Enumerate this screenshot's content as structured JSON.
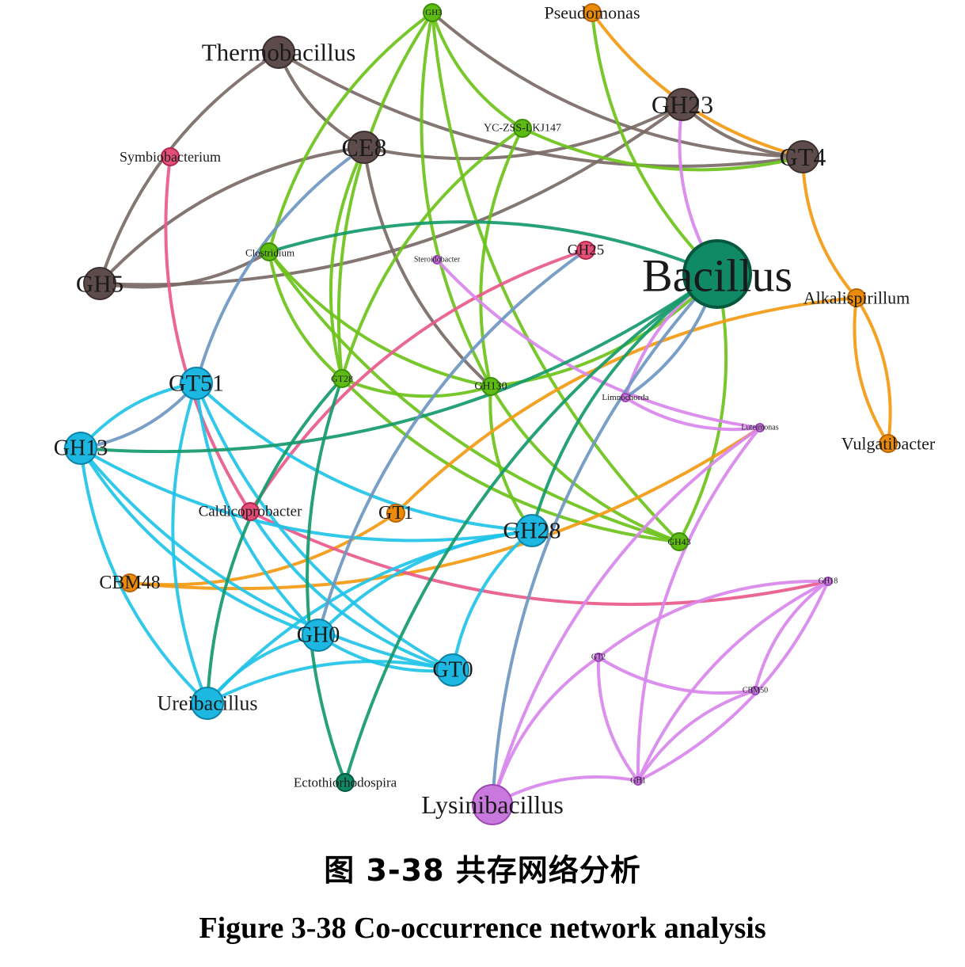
{
  "figure": {
    "caption_cn": "图 3-38  共存网络分析",
    "caption_en": "Figure 3-38 Co-occurrence network analysis"
  },
  "legend_colors": {
    "brown": "#7a6a66",
    "green": "#6cc21a",
    "orange": "#f39a12",
    "pink": "#e85a8a",
    "violet": "#d987ec",
    "cyan": "#20c3e8",
    "teal": "#159a6a",
    "steel": "#6f97c2"
  },
  "network": {
    "nodes": [
      {
        "id": "Thermobacillus",
        "label": "Thermobacillus",
        "group": "brown",
        "size": "m"
      },
      {
        "id": "CE8",
        "label": "CE8",
        "group": "brown",
        "size": "m"
      },
      {
        "id": "GH5",
        "label": "GH5",
        "group": "brown",
        "size": "m"
      },
      {
        "id": "GH23",
        "label": "GH23",
        "group": "brown",
        "size": "m"
      },
      {
        "id": "GT4",
        "label": "GT4",
        "group": "brown",
        "size": "m"
      },
      {
        "id": "GH3",
        "label": "GH3",
        "group": "green",
        "size": "s"
      },
      {
        "id": "YC-ZSS-LKJ147",
        "label": "YC-ZSS-LKJ147",
        "group": "green",
        "size": "s"
      },
      {
        "id": "Clostridium",
        "label": "Clostridium",
        "group": "green",
        "size": "s"
      },
      {
        "id": "GT28",
        "label": "GT28",
        "group": "green",
        "size": "s"
      },
      {
        "id": "GH130",
        "label": "GH130",
        "group": "green",
        "size": "s"
      },
      {
        "id": "GH43",
        "label": "GH43",
        "group": "green",
        "size": "s"
      },
      {
        "id": "Pseudomonas",
        "label": "Pseudomonas",
        "group": "orange",
        "size": "s"
      },
      {
        "id": "Alkalispirillum",
        "label": "Alkalispirillum",
        "group": "orange",
        "size": "s"
      },
      {
        "id": "Vulgatibacter",
        "label": "Vulgatibacter",
        "group": "orange",
        "size": "s"
      },
      {
        "id": "GT1",
        "label": "GT1",
        "group": "orange",
        "size": "s"
      },
      {
        "id": "CBM48",
        "label": "CBM48",
        "group": "orange",
        "size": "s"
      },
      {
        "id": "Symbiobacterium",
        "label": "Symbiobacterium",
        "group": "pink",
        "size": "s"
      },
      {
        "id": "GH25",
        "label": "GH25",
        "group": "pink",
        "size": "s"
      },
      {
        "id": "Caldicoprobacter",
        "label": "Caldicoprobacter",
        "group": "pink",
        "size": "s"
      },
      {
        "id": "Steroidobacter",
        "label": "Steroidobacter",
        "group": "violet",
        "size": "xs"
      },
      {
        "id": "Limnochorda",
        "label": "Limnochorda",
        "group": "violet",
        "size": "xs"
      },
      {
        "id": "Luteimonas",
        "label": "Luteimonas",
        "group": "violet",
        "size": "xs"
      },
      {
        "id": "GH18",
        "label": "GH18",
        "group": "violet",
        "size": "xs"
      },
      {
        "id": "GT2",
        "label": "GT2",
        "group": "violet",
        "size": "xs"
      },
      {
        "id": "CBM50",
        "label": "CBM50",
        "group": "violet",
        "size": "xs"
      },
      {
        "id": "GH1",
        "label": "GH1",
        "group": "violet",
        "size": "xs"
      },
      {
        "id": "Lysinibacillus",
        "label": "Lysinibacillus",
        "group": "violet",
        "size": "l"
      },
      {
        "id": "GT51",
        "label": "GT51",
        "group": "cyan",
        "size": "m"
      },
      {
        "id": "GH13",
        "label": "GH13",
        "group": "cyan",
        "size": "m"
      },
      {
        "id": "GH28",
        "label": "GH28",
        "group": "cyan",
        "size": "m"
      },
      {
        "id": "GH0",
        "label": "GH0",
        "group": "cyan",
        "size": "m"
      },
      {
        "id": "GT0",
        "label": "GT0",
        "group": "cyan",
        "size": "m"
      },
      {
        "id": "Ureibacillus",
        "label": "Ureibacillus",
        "group": "cyan",
        "size": "m"
      },
      {
        "id": "Bacillus",
        "label": "Bacillus",
        "group": "teal",
        "size": "xl"
      },
      {
        "id": "Ectothiorhodospira",
        "label": "Ectothiorhodospira",
        "group": "teal",
        "size": "s"
      }
    ],
    "edges": [
      {
        "source": "Thermobacillus",
        "target": "CE8",
        "color": "brown"
      },
      {
        "source": "Thermobacillus",
        "target": "GH5",
        "color": "brown"
      },
      {
        "source": "CE8",
        "target": "GH5",
        "color": "brown"
      },
      {
        "source": "GH5",
        "target": "GH23",
        "color": "brown"
      },
      {
        "source": "GH5",
        "target": "Clostridium",
        "color": "brown"
      },
      {
        "source": "CE8",
        "target": "GH23",
        "color": "brown"
      },
      {
        "source": "GH3",
        "target": "GT4",
        "color": "brown"
      },
      {
        "source": "Thermobacillus",
        "target": "GT4",
        "color": "brown"
      },
      {
        "source": "CE8",
        "target": "GH130",
        "color": "brown"
      },
      {
        "source": "GH23",
        "target": "GT4",
        "color": "brown"
      },
      {
        "source": "GH3",
        "target": "YC-ZSS-LKJ147",
        "color": "green"
      },
      {
        "source": "GH3",
        "target": "Clostridium",
        "color": "green"
      },
      {
        "source": "GH3",
        "target": "GT28",
        "color": "green"
      },
      {
        "source": "GH3",
        "target": "GH130",
        "color": "green"
      },
      {
        "source": "GH3",
        "target": "GH43",
        "color": "green"
      },
      {
        "source": "YC-ZSS-LKJ147",
        "target": "GT28",
        "color": "green"
      },
      {
        "source": "YC-ZSS-LKJ147",
        "target": "GH130",
        "color": "green"
      },
      {
        "source": "YC-ZSS-LKJ147",
        "target": "GT4",
        "color": "green"
      },
      {
        "source": "Clostridium",
        "target": "GT28",
        "color": "green"
      },
      {
        "source": "Clostridium",
        "target": "GH130",
        "color": "green"
      },
      {
        "source": "Clostridium",
        "target": "GH43",
        "color": "green"
      },
      {
        "source": "GT28",
        "target": "GH130",
        "color": "green"
      },
      {
        "source": "GT28",
        "target": "GH43",
        "color": "green"
      },
      {
        "source": "GH130",
        "target": "GH43",
        "color": "green"
      },
      {
        "source": "GH130",
        "target": "GH28",
        "color": "green"
      },
      {
        "source": "CE8",
        "target": "GT28",
        "color": "green"
      },
      {
        "source": "GH130",
        "target": "Bacillus",
        "color": "green"
      },
      {
        "source": "GH43",
        "target": "Bacillus",
        "color": "green"
      },
      {
        "source": "Pseudomonas",
        "target": "Bacillus",
        "color": "green"
      },
      {
        "source": "Pseudomonas",
        "target": "GT4",
        "color": "orange"
      },
      {
        "source": "GT4",
        "target": "Alkalispirillum",
        "color": "orange"
      },
      {
        "source": "Alkalispirillum",
        "target": "Vulgatibacter",
        "color": "orange"
      },
      {
        "source": "Alkalispirillum",
        "target": "Vulgatibacter",
        "color": "orange"
      },
      {
        "source": "Alkalispirillum",
        "target": "GT1",
        "color": "orange"
      },
      {
        "source": "CBM48",
        "target": "GT1",
        "color": "orange"
      },
      {
        "source": "CBM48",
        "target": "Luteimonas",
        "color": "orange"
      },
      {
        "source": "Symbiobacterium",
        "target": "Caldicoprobacter",
        "color": "pink"
      },
      {
        "source": "GH25",
        "target": "Caldicoprobacter",
        "color": "pink"
      },
      {
        "source": "Caldicoprobacter",
        "target": "GH18",
        "color": "pink"
      },
      {
        "source": "Steroidobacter",
        "target": "Luteimonas",
        "color": "violet"
      },
      {
        "source": "GH23",
        "target": "Bacillus",
        "color": "violet"
      },
      {
        "source": "Bacillus",
        "target": "Limnochorda",
        "color": "violet"
      },
      {
        "source": "Limnochorda",
        "target": "Luteimonas",
        "color": "violet"
      },
      {
        "source": "Luteimonas",
        "target": "Lysinibacillus",
        "color": "violet"
      },
      {
        "source": "Luteimonas",
        "target": "GH1",
        "color": "violet"
      },
      {
        "source": "GH18",
        "target": "GT2",
        "color": "violet"
      },
      {
        "source": "GH18",
        "target": "CBM50",
        "color": "violet"
      },
      {
        "source": "GH18",
        "target": "GH1",
        "color": "violet"
      },
      {
        "source": "GT2",
        "target": "CBM50",
        "color": "violet"
      },
      {
        "source": "GT2",
        "target": "GH1",
        "color": "violet"
      },
      {
        "source": "CBM50",
        "target": "GH1",
        "color": "violet"
      },
      {
        "source": "GT2",
        "target": "Lysinibacillus",
        "color": "violet"
      },
      {
        "source": "GH1",
        "target": "Lysinibacillus",
        "color": "violet"
      },
      {
        "source": "GH18",
        "target": "GH1",
        "color": "violet"
      },
      {
        "source": "GT51",
        "target": "GH13",
        "color": "cyan"
      },
      {
        "source": "GT51",
        "target": "GH28",
        "color": "cyan"
      },
      {
        "source": "GT51",
        "target": "GH0",
        "color": "cyan"
      },
      {
        "source": "GT51",
        "target": "GT0",
        "color": "cyan"
      },
      {
        "source": "GT51",
        "target": "Ureibacillus",
        "color": "cyan"
      },
      {
        "source": "GH13",
        "target": "GH28",
        "color": "cyan"
      },
      {
        "source": "GH13",
        "target": "GH0",
        "color": "cyan"
      },
      {
        "source": "GH13",
        "target": "GT0",
        "color": "cyan"
      },
      {
        "source": "GH13",
        "target": "Ureibacillus",
        "color": "cyan"
      },
      {
        "source": "GH28",
        "target": "GH0",
        "color": "cyan"
      },
      {
        "source": "GH28",
        "target": "GT0",
        "color": "cyan"
      },
      {
        "source": "GH28",
        "target": "Ureibacillus",
        "color": "cyan"
      },
      {
        "source": "GH0",
        "target": "GT0",
        "color": "cyan"
      },
      {
        "source": "GH0",
        "target": "Ureibacillus",
        "color": "cyan"
      },
      {
        "source": "GT0",
        "target": "Ureibacillus",
        "color": "cyan"
      },
      {
        "source": "Caldicoprobacter",
        "target": "GT0",
        "color": "cyan"
      },
      {
        "source": "GH13",
        "target": "Bacillus",
        "color": "teal"
      },
      {
        "source": "GT28",
        "target": "Ureibacillus",
        "color": "teal"
      },
      {
        "source": "Bacillus",
        "target": "GH28",
        "color": "teal"
      },
      {
        "source": "Bacillus",
        "target": "Ectothiorhodospira",
        "color": "teal"
      },
      {
        "source": "GT28",
        "target": "Ectothiorhodospira",
        "color": "teal"
      },
      {
        "source": "Bacillus",
        "target": "Clostridium",
        "color": "teal"
      },
      {
        "source": "CE8",
        "target": "GT51",
        "color": "steel"
      },
      {
        "source": "GT51",
        "target": "GH13",
        "color": "steel"
      },
      {
        "source": "GH25",
        "target": "GH0",
        "color": "steel"
      },
      {
        "source": "Bacillus",
        "target": "Lysinibacillus",
        "color": "steel"
      },
      {
        "source": "Bacillus",
        "target": "Limnochorda",
        "color": "steel"
      }
    ]
  }
}
